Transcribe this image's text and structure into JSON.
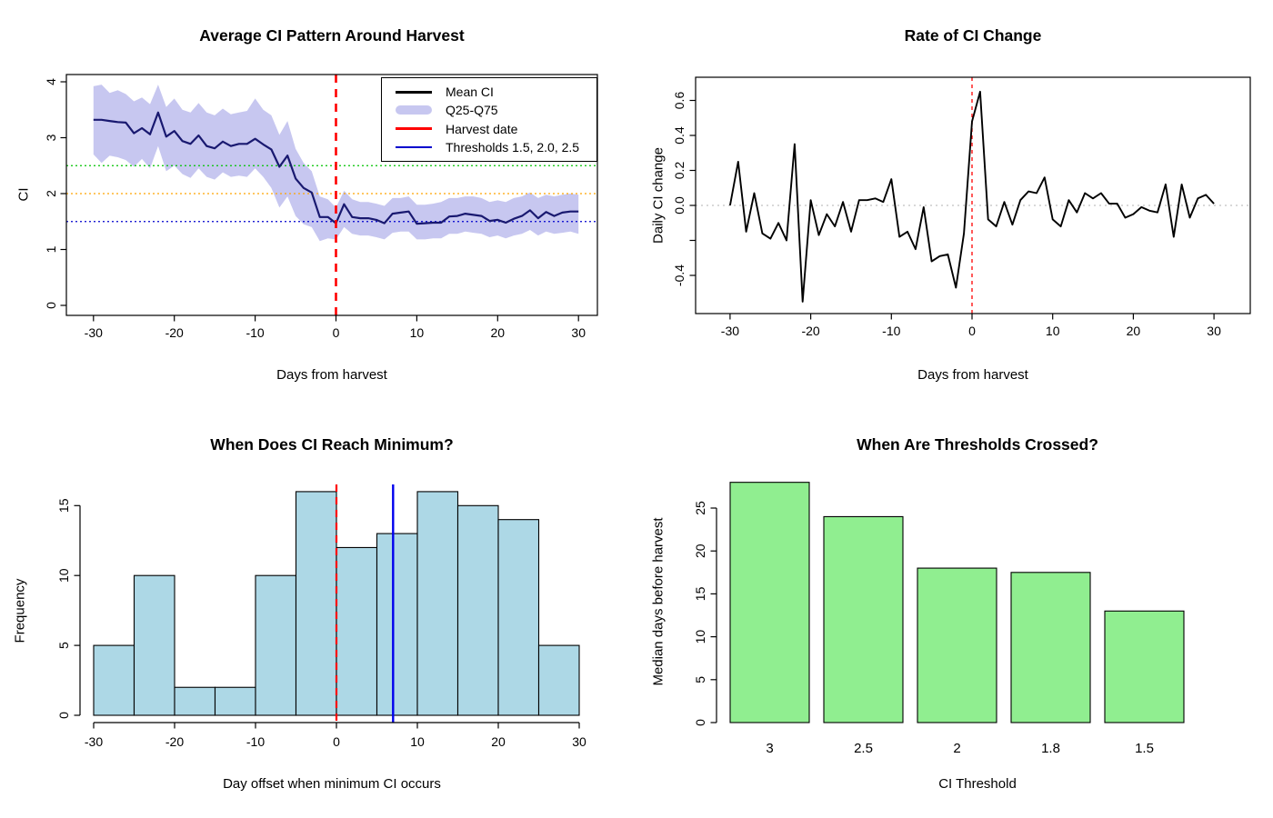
{
  "figure": {
    "background": "#ffffff"
  },
  "chart_data": [
    {
      "id": "average-ci-pattern",
      "type": "line",
      "title": "Average CI Pattern Around Harvest",
      "xlabel": "Days from harvest",
      "ylabel": "CI",
      "xlim": [
        -33,
        33
      ],
      "ylim": [
        0,
        4.3
      ],
      "x_ticks": [
        -30,
        -20,
        -10,
        0,
        10,
        20,
        30
      ],
      "y_ticks": [
        0,
        1,
        2,
        3,
        4
      ],
      "grid": false,
      "legend_position": "top-right",
      "x": [
        -30,
        -29,
        -28,
        -27,
        -26,
        -25,
        -24,
        -23,
        -22,
        -21,
        -20,
        -19,
        -18,
        -17,
        -16,
        -15,
        -14,
        -13,
        -12,
        -11,
        -10,
        -9,
        -8,
        -7,
        -6,
        -5,
        -4,
        -3,
        -2,
        -1,
        0,
        1,
        2,
        3,
        4,
        5,
        6,
        7,
        8,
        9,
        10,
        11,
        12,
        13,
        14,
        15,
        16,
        17,
        18,
        19,
        20,
        21,
        22,
        23,
        24,
        25,
        26,
        27,
        28,
        29,
        30
      ],
      "mean": [
        3.32,
        3.32,
        3.3,
        3.28,
        3.27,
        3.08,
        3.17,
        3.06,
        3.45,
        3.02,
        3.12,
        2.94,
        2.89,
        3.04,
        2.85,
        2.81,
        2.93,
        2.85,
        2.89,
        2.89,
        2.98,
        2.88,
        2.79,
        2.48,
        2.68,
        2.27,
        2.1,
        2.02,
        1.58,
        1.58,
        1.47,
        1.81,
        1.58,
        1.56,
        1.56,
        1.53,
        1.47,
        1.64,
        1.66,
        1.68,
        1.46,
        1.47,
        1.48,
        1.48,
        1.59,
        1.6,
        1.64,
        1.62,
        1.6,
        1.51,
        1.53,
        1.48,
        1.55,
        1.6,
        1.7,
        1.56,
        1.67,
        1.6,
        1.66,
        1.68,
        1.68
      ],
      "q75": [
        3.92,
        3.95,
        3.8,
        3.85,
        3.78,
        3.65,
        3.72,
        3.6,
        3.95,
        3.55,
        3.7,
        3.5,
        3.45,
        3.62,
        3.45,
        3.4,
        3.52,
        3.42,
        3.45,
        3.48,
        3.7,
        3.5,
        3.4,
        3.05,
        3.3,
        2.8,
        2.55,
        2.4,
        1.95,
        1.9,
        1.75,
        2.05,
        1.9,
        1.85,
        1.85,
        1.82,
        1.78,
        1.92,
        1.92,
        1.95,
        1.8,
        1.8,
        1.82,
        1.85,
        1.92,
        1.92,
        1.95,
        1.95,
        1.92,
        1.85,
        1.88,
        1.85,
        1.92,
        1.95,
        2.02,
        1.92,
        1.98,
        1.95,
        1.98,
        2.0,
        1.98
      ],
      "q25": [
        2.7,
        2.55,
        2.68,
        2.65,
        2.6,
        2.48,
        2.62,
        2.45,
        2.85,
        2.4,
        2.5,
        2.35,
        2.28,
        2.45,
        2.3,
        2.25,
        2.38,
        2.3,
        2.32,
        2.3,
        2.45,
        2.3,
        2.1,
        1.75,
        1.95,
        1.6,
        1.45,
        1.4,
        1.15,
        1.2,
        1.18,
        1.4,
        1.28,
        1.25,
        1.25,
        1.22,
        1.18,
        1.3,
        1.32,
        1.32,
        1.18,
        1.18,
        1.2,
        1.2,
        1.28,
        1.28,
        1.32,
        1.3,
        1.28,
        1.22,
        1.25,
        1.2,
        1.25,
        1.28,
        1.35,
        1.25,
        1.32,
        1.28,
        1.3,
        1.32,
        1.28
      ],
      "harvest_line_x": 0,
      "thresholds": [
        {
          "value": 2.5,
          "color": "#00c300"
        },
        {
          "value": 2.0,
          "color": "#ffa500"
        },
        {
          "value": 1.5,
          "color": "#0000cd"
        }
      ],
      "colors": {
        "mean_line": "#191970",
        "ribbon": "#c7c7f0",
        "harvest": "#ff0000",
        "box": "#000000"
      },
      "legend": [
        {
          "label": "Mean CI",
          "color": "#000000",
          "kind": "line-black"
        },
        {
          "label": "Q25-Q75",
          "color": "#c7c7f0",
          "kind": "band"
        },
        {
          "label": "Harvest date",
          "color": "#ff0000",
          "kind": "line-red"
        },
        {
          "label": "Thresholds 1.5, 2.0, 2.5",
          "color": "#0000cd",
          "kind": "line-blue"
        }
      ]
    },
    {
      "id": "rate-of-ci-change",
      "type": "line",
      "title": "Rate of CI Change",
      "xlabel": "Days from harvest",
      "ylabel": "Daily CI change",
      "xlim": [
        -33,
        33
      ],
      "ylim": [
        -0.62,
        0.73
      ],
      "x_ticks": [
        -30,
        -20,
        -10,
        0,
        10,
        20,
        30
      ],
      "y_ticks": [
        {
          "v": 0.6,
          "label": "0.6"
        },
        {
          "v": 0.4,
          "label": "0.4"
        },
        {
          "v": 0.2,
          "label": "0.2"
        },
        {
          "v": 0.0,
          "label": "0.0"
        },
        {
          "v": -0.2,
          "label": ""
        },
        {
          "v": -0.4,
          "label": "-0.4"
        }
      ],
      "grid": false,
      "x": [
        -30,
        -29,
        -28,
        -27,
        -26,
        -25,
        -24,
        -23,
        -22,
        -21,
        -20,
        -19,
        -18,
        -17,
        -16,
        -15,
        -14,
        -13,
        -12,
        -11,
        -10,
        -9,
        -8,
        -7,
        -6,
        -5,
        -4,
        -3,
        -2,
        -1,
        0,
        1,
        2,
        3,
        4,
        5,
        6,
        7,
        8,
        9,
        10,
        11,
        12,
        13,
        14,
        15,
        16,
        17,
        18,
        19,
        20,
        21,
        22,
        23,
        24,
        25,
        26,
        27,
        28,
        29,
        30
      ],
      "values": [
        0.0,
        0.25,
        -0.15,
        0.07,
        -0.16,
        -0.19,
        -0.1,
        -0.2,
        0.35,
        -0.55,
        0.03,
        -0.17,
        -0.05,
        -0.12,
        0.02,
        -0.15,
        0.03,
        0.03,
        0.04,
        0.02,
        0.15,
        -0.18,
        -0.15,
        -0.25,
        -0.01,
        -0.32,
        -0.29,
        -0.28,
        -0.47,
        -0.16,
        0.48,
        0.65,
        -0.08,
        -0.12,
        0.02,
        -0.11,
        0.03,
        0.08,
        0.07,
        0.16,
        -0.08,
        -0.12,
        0.03,
        -0.04,
        0.07,
        0.04,
        0.07,
        0.01,
        0.01,
        -0.07,
        -0.05,
        -0.01,
        -0.03,
        -0.04,
        0.12,
        -0.18,
        0.12,
        -0.07,
        0.04,
        0.06,
        0.01
      ],
      "zero_line_y": 0,
      "harvest_line_x": 0,
      "colors": {
        "line": "#000000",
        "zero": "#c0c0c0",
        "harvest": "#ff0000",
        "box": "#000000"
      }
    },
    {
      "id": "minimum-ci-histogram",
      "type": "histogram",
      "title": "When Does CI Reach Minimum?",
      "xlabel": "Day offset when minimum CI occurs",
      "ylabel": "Frequency",
      "x_ticks": [
        -30,
        -20,
        -10,
        0,
        10,
        20,
        30
      ],
      "y_ticks": [
        0,
        5,
        10,
        15
      ],
      "bin_edges": [
        -30,
        -25,
        -20,
        -15,
        -10,
        -5,
        0,
        5,
        10,
        15,
        20,
        25,
        30
      ],
      "counts": [
        5,
        10,
        2,
        2,
        10,
        16,
        12,
        13,
        16,
        15,
        14,
        5
      ],
      "vlines": [
        {
          "x": 0,
          "color": "#ff0000",
          "style": "dashed"
        },
        {
          "x": 7,
          "color": "#0000ee",
          "style": "solid"
        }
      ],
      "colors": {
        "bar_fill": "#add8e6",
        "bar_border": "#000000"
      }
    },
    {
      "id": "threshold-crossing-bars",
      "type": "bar",
      "title": "When Are Thresholds Crossed?",
      "xlabel": "CI Threshold",
      "ylabel": "Median days before harvest",
      "categories": [
        "3",
        "2.5",
        "2",
        "1.8",
        "1.5"
      ],
      "values": [
        28,
        24,
        18,
        17.5,
        13
      ],
      "y_ticks": [
        0,
        5,
        10,
        15,
        20,
        25
      ],
      "ylim": [
        0,
        28
      ],
      "colors": {
        "bar_fill": "#90ee90",
        "bar_border": "#000000"
      }
    }
  ]
}
